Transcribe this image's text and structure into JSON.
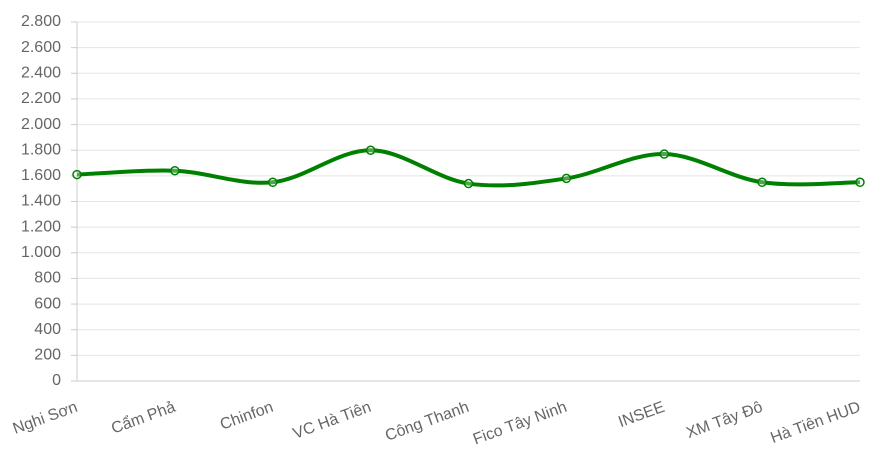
{
  "chart_data": {
    "type": "line",
    "categories": [
      "Nghi Sơn",
      "Cẩm Phả",
      "Chinfon",
      "VC Hà Tiên",
      "Công Thanh",
      "Fico Tây Ninh",
      "INSEE",
      "XM Tây Đô",
      "Hà Tiên HUD"
    ],
    "values": [
      1610,
      1640,
      1550,
      1800,
      1540,
      1580,
      1770,
      1550,
      1550
    ],
    "color": "#008000",
    "ylim": [
      0,
      2800
    ],
    "yticks": [
      0,
      200,
      400,
      600,
      800,
      {
        "value": 1000,
        "label": "1.000"
      },
      {
        "value": 1200,
        "label": "1.200"
      },
      {
        "value": 1400,
        "label": "1.400"
      },
      {
        "value": 1600,
        "label": "1.600"
      },
      {
        "value": 1800,
        "label": "1.800"
      },
      {
        "value": 2000,
        "label": "2.000"
      },
      {
        "value": 2200,
        "label": "2.200"
      },
      {
        "value": 2400,
        "label": "2.400"
      },
      {
        "value": 2600,
        "label": "2.600"
      },
      {
        "value": 2800,
        "label": "2.800"
      }
    ],
    "grid": true,
    "smooth": true
  }
}
